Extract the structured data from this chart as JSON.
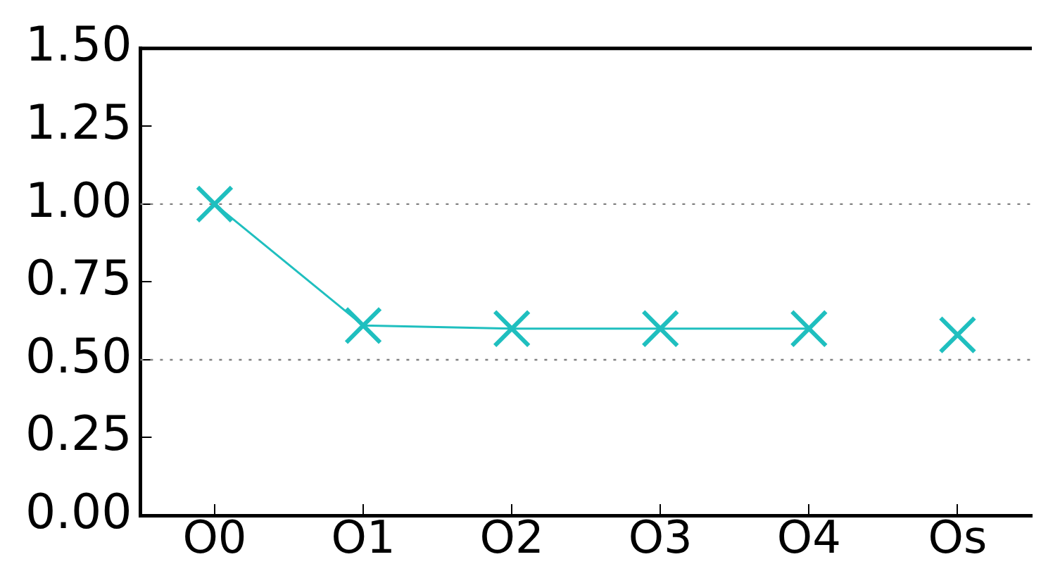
{
  "chart_data": {
    "type": "line",
    "categories": [
      "O0",
      "O1",
      "O2",
      "O3",
      "O4",
      "Os"
    ],
    "ylim": [
      0,
      1.5
    ],
    "yticks": [
      {
        "value": 0,
        "label": "0.00"
      },
      {
        "value": 0.25,
        "label": "0.25"
      },
      {
        "value": 0.5,
        "label": "0.50"
      },
      {
        "value": 0.75,
        "label": "0.75"
      },
      {
        "value": 1,
        "label": "1.00"
      },
      {
        "value": 1.25,
        "label": "1.25"
      },
      {
        "value": 1.5,
        "label": "1.50"
      }
    ],
    "series": [
      {
        "type": "line",
        "color": "#1fbfbf",
        "values": [
          1.0,
          0.61,
          0.6,
          0.6,
          0.6,
          null
        ]
      },
      {
        "type": "scatter",
        "color": "#1fbfbf",
        "values": [
          null,
          null,
          null,
          null,
          null,
          0.58
        ]
      }
    ],
    "marker": "cross",
    "grid": false,
    "legend": false,
    "ref_lines": [
      {
        "axis": "y",
        "value": 0.5,
        "color": "#808080",
        "line_style": "dotted"
      },
      {
        "axis": "y",
        "value": 1,
        "color": "#808080",
        "line_style": "dotted"
      }
    ]
  }
}
